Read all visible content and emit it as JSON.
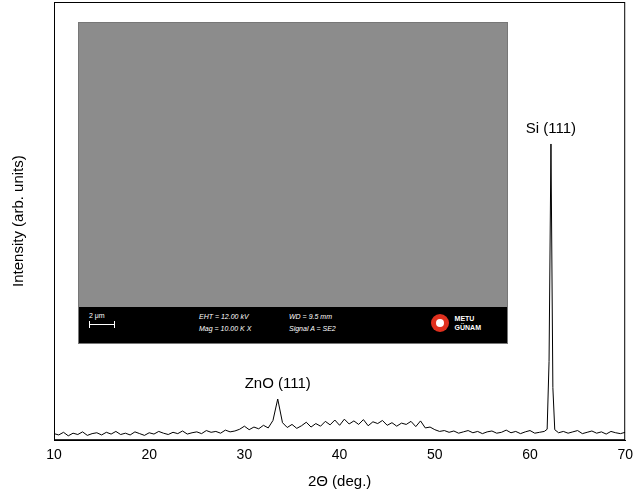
{
  "chart_data": {
    "type": "line",
    "x_label": "2Θ (deg.)",
    "y_label": "Intensity (arb. units)",
    "xlim": [
      10,
      70
    ],
    "xticks": [
      10,
      20,
      30,
      40,
      50,
      60,
      70
    ],
    "ylim": [
      0,
      100
    ],
    "tick_labels": "x",
    "grid": false,
    "color": "#000000",
    "x": [
      10,
      10.5,
      11,
      11.5,
      12,
      12.5,
      13,
      13.5,
      14,
      14.5,
      15,
      15.5,
      16,
      16.5,
      17,
      17.5,
      18,
      18.5,
      19,
      19.5,
      20,
      20.5,
      21,
      21.5,
      22,
      22.5,
      23,
      23.5,
      24,
      24.5,
      25,
      25.5,
      26,
      26.5,
      27,
      27.5,
      28,
      28.5,
      29,
      29.5,
      30,
      30.5,
      31,
      31.5,
      32,
      32.5,
      33,
      33.5,
      34,
      34.5,
      35,
      35.5,
      36,
      36.5,
      37,
      37.5,
      38,
      38.5,
      39,
      39.5,
      40,
      40.5,
      41,
      41.5,
      42,
      42.5,
      43,
      43.5,
      44,
      44.5,
      45,
      45.5,
      46,
      46.5,
      47,
      47.5,
      48,
      48.5,
      49,
      49.5,
      50,
      50.5,
      51,
      51.5,
      52,
      52.5,
      53,
      53.5,
      54,
      54.5,
      55,
      55.5,
      56,
      56.5,
      57,
      57.5,
      58,
      58.5,
      59,
      59.5,
      60,
      60.5,
      61,
      61.5,
      61.8,
      62,
      62.2,
      62.4,
      62.6,
      63,
      63.5,
      64,
      64.5,
      65,
      65.5,
      66,
      66.5,
      67,
      67.5,
      68,
      68.5,
      69,
      69.5,
      70
    ],
    "values": [
      1.5,
      1.2,
      1.8,
      1.0,
      1.6,
      1.3,
      1.9,
      1.1,
      1.5,
      1.7,
      1.2,
      1.8,
      1.4,
      2.0,
      1.3,
      1.6,
      1.2,
      1.9,
      1.5,
      1.1,
      1.7,
      1.4,
      2.0,
      1.6,
      1.3,
      1.8,
      1.5,
      2.1,
      1.4,
      1.7,
      1.9,
      1.5,
      2.2,
      1.8,
      2.0,
      1.6,
      2.3,
      1.9,
      2.1,
      2.5,
      3.2,
      2.4,
      3.0,
      2.6,
      3.4,
      2.8,
      4.5,
      9.4,
      4.0,
      2.9,
      3.6,
      2.7,
      3.3,
      4.1,
      3.0,
      3.8,
      3.2,
      4.3,
      3.5,
      4.6,
      3.4,
      4.8,
      3.7,
      4.4,
      3.6,
      4.7,
      3.3,
      4.2,
      3.8,
      4.5,
      3.4,
      4.0,
      3.2,
      3.9,
      3.6,
      4.3,
      3.1,
      4.4,
      2.8,
      3.0,
      2.4,
      2.0,
      2.2,
      1.8,
      2.1,
      1.6,
      1.9,
      2.2,
      1.7,
      2.0,
      1.5,
      1.9,
      2.1,
      1.6,
      1.8,
      2.3,
      1.7,
      2.0,
      1.5,
      1.9,
      2.2,
      1.6,
      1.8,
      2.0,
      2.5,
      18,
      67.6,
      12,
      2.4,
      1.7,
      2.0,
      1.6,
      1.9,
      2.2,
      1.5,
      1.8,
      2.1,
      1.6,
      1.9,
      1.4,
      2.0,
      1.7,
      1.5,
      1.8
    ],
    "annotations": [
      {
        "text": "ZnO (111)",
        "x": 33.5,
        "y": 9.4
      },
      {
        "text": "Si (111)",
        "x": 62.2,
        "y": 67.6
      }
    ],
    "inset": {
      "scale_bar": "2 μm",
      "info": [
        "EHT = 12.00 kV",
        "WD = 9.5 mm",
        "Mag = 10.00 K X",
        "Signal A = SE2"
      ],
      "logo": [
        "METU",
        "GÜNAM"
      ]
    }
  }
}
